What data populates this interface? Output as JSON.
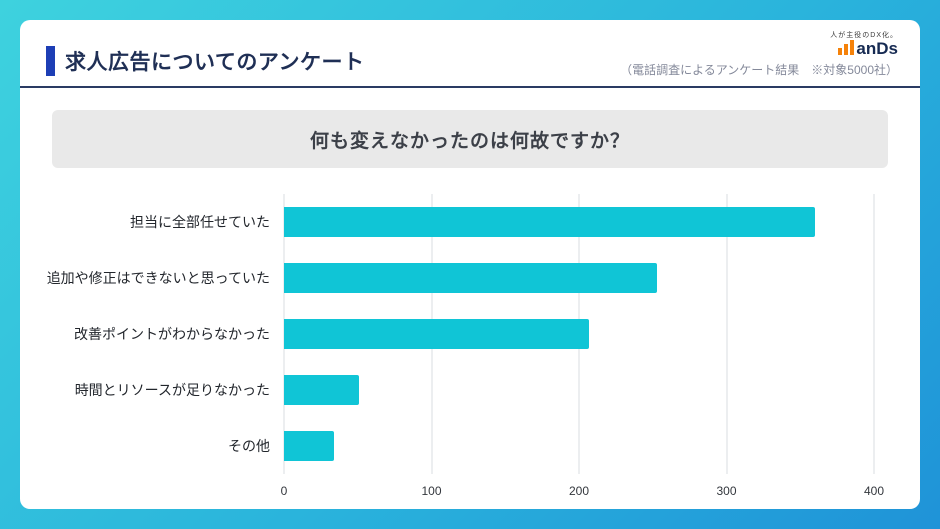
{
  "header": {
    "title": "求人広告についてのアンケート",
    "caption": "（電話調査によるアンケート結果　※対象5000社）",
    "logo": {
      "tagline": "人が主役のDX化。",
      "name": "anDs",
      "icon_color": "#f5820a"
    }
  },
  "chart_data": {
    "type": "bar",
    "orientation": "horizontal",
    "title": "何も変えなかったのは何故ですか？",
    "categories": [
      "担当に全部任せていた",
      "追加や修正はできないと思っていた",
      "改善ポイントがわからなかった",
      "時間とリソースが足りなかった",
      "その他"
    ],
    "values": [
      360,
      253,
      207,
      51,
      34
    ],
    "xlim": [
      0,
      400
    ],
    "xticks": [
      0,
      100,
      200,
      300,
      400
    ],
    "bar_color": "#10c5d6",
    "grid": true,
    "legend": "none"
  },
  "colors": {
    "background_gradient_start": "#3ed2de",
    "background_gradient_end": "#1f93d8",
    "accent_bar": "#1d3eb5",
    "divider": "#2a3b63",
    "question_box_bg": "#e9e9e9",
    "title_text": "#1f2f55"
  }
}
